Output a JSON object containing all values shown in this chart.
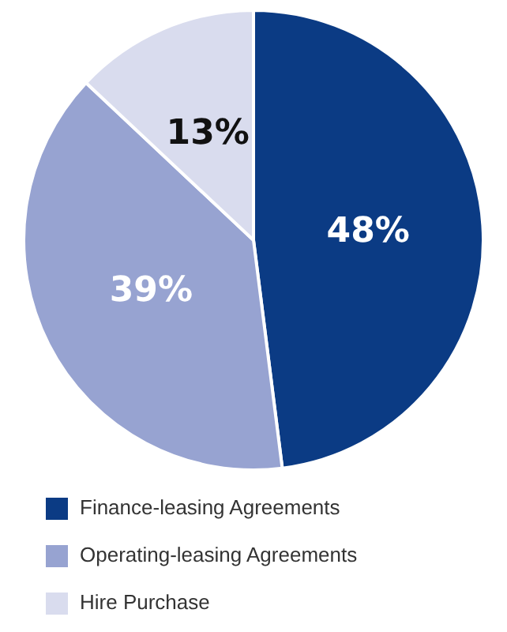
{
  "chart_data": {
    "type": "pie",
    "categories": [
      "Finance-leasing Agreements",
      "Operating-leasing Agreements",
      "Hire Purchase"
    ],
    "values": [
      48,
      39,
      13
    ],
    "colors": [
      "#0b3b84",
      "#97a3d1",
      "#d9dcee"
    ],
    "value_labels": [
      "48%",
      "39%",
      "13%"
    ],
    "legend": "bottom"
  }
}
